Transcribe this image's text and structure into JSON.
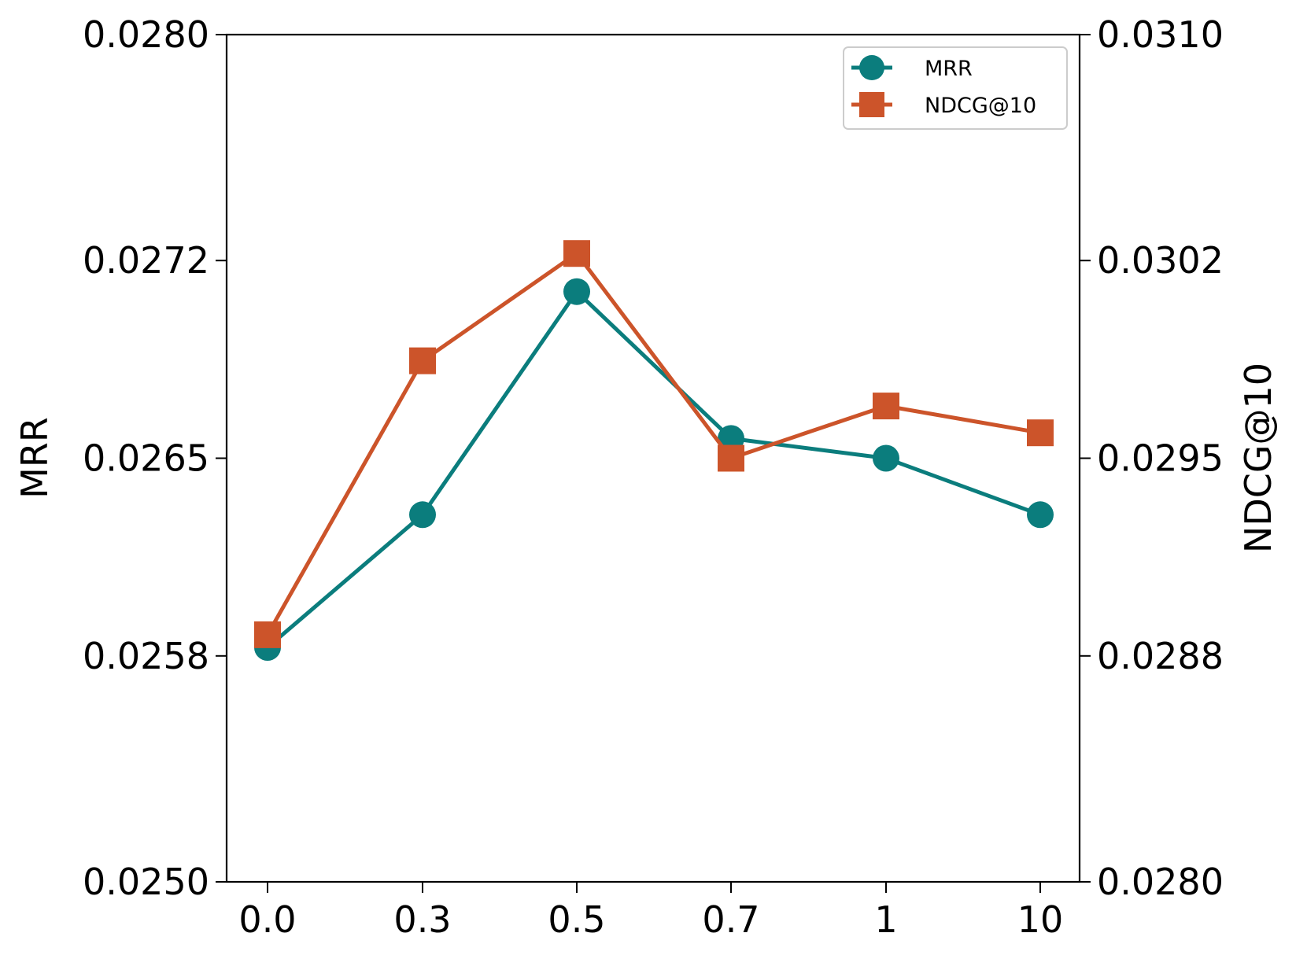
{
  "chart_data": {
    "type": "line",
    "categories": [
      "0.0",
      "0.3",
      "0.5",
      "0.7",
      "1",
      "10"
    ],
    "series": [
      {
        "name": "MRR",
        "axis": "left",
        "values": [
          0.02583,
          0.0263,
          0.02709,
          0.02657,
          0.0265,
          0.0263
        ],
        "color": "#0b7d7d",
        "marker": "circle"
      },
      {
        "name": "NDCG@10",
        "axis": "right",
        "values": [
          0.028875,
          0.029845,
          0.030225,
          0.0295,
          0.029685,
          0.02959
        ],
        "color": "#cc542a",
        "marker": "square"
      }
    ],
    "left_axis": {
      "label": "MRR",
      "ylim": [
        0.025,
        0.028
      ],
      "ticks": [
        "0.0250",
        "0.0258",
        "0.0265",
        "0.0272",
        "0.0280"
      ]
    },
    "right_axis": {
      "label": "NDCG@10",
      "ylim": [
        0.028,
        0.031
      ],
      "ticks": [
        "0.0280",
        "0.0288",
        "0.0295",
        "0.0302",
        "0.0310"
      ]
    },
    "legend": [
      "MRR",
      "NDCG@10"
    ],
    "legend_position": "top-right",
    "grid": false,
    "title": "",
    "xlabel": ""
  }
}
